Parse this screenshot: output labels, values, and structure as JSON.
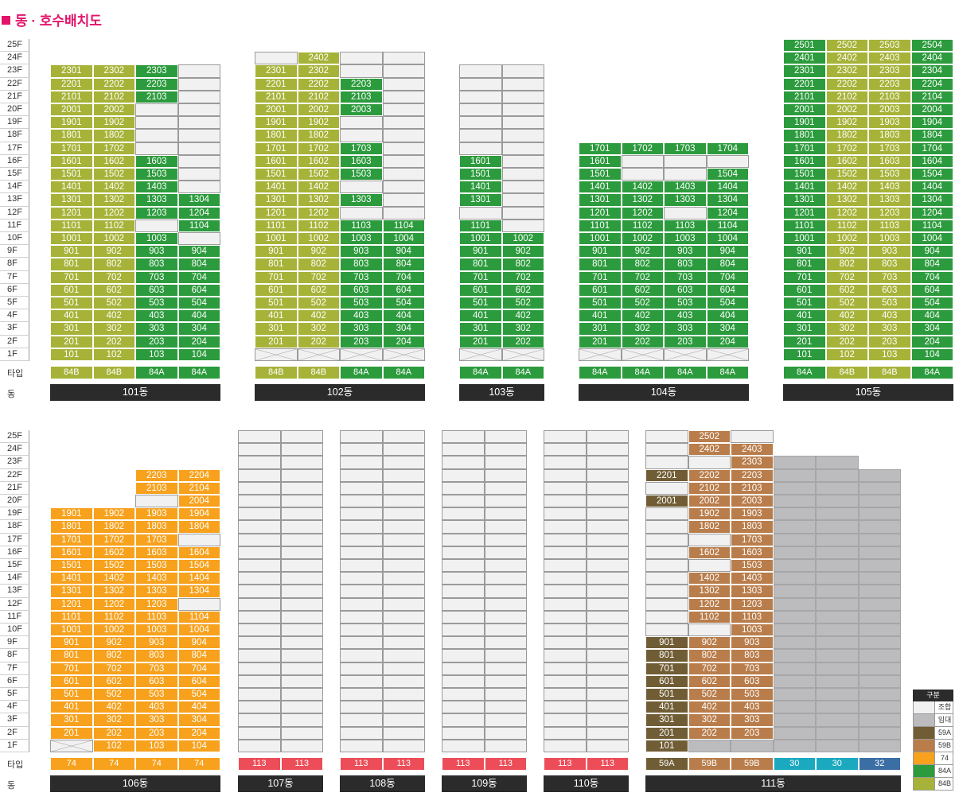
{
  "title": "동 · 호수배치도",
  "row_labels": {
    "type": "타입",
    "dong": "동"
  },
  "colors": {
    "84A": "#2c9b3d",
    "84B": "#a6b338",
    "74": "#f7a11c",
    "59A": "#715d35",
    "59B": "#b97d4b",
    "113": "#ec4d58",
    "30": "#1ba9bf",
    "32": "#3a6ea5",
    "임대": "#bcbcbf",
    "조합": "#f1f1f1"
  },
  "floors": [
    "25F",
    "24F",
    "23F",
    "22F",
    "21F",
    "20F",
    "19F",
    "18F",
    "17F",
    "16F",
    "15F",
    "14F",
    "13F",
    "12F",
    "11F",
    "10F",
    "9F",
    "8F",
    "7F",
    "6F",
    "5F",
    "4F",
    "3F",
    "2F",
    "1F"
  ],
  "legend": {
    "title": "구분",
    "items": [
      {
        "key": "조합",
        "label": "조합"
      },
      {
        "key": "임대",
        "label": "임대"
      },
      {
        "key": "59A",
        "label": "59A"
      },
      {
        "key": "59B",
        "label": "59B"
      },
      {
        "key": "74",
        "label": "74"
      },
      {
        "key": "84A",
        "label": "84A"
      },
      {
        "key": "84B",
        "label": "84B"
      }
    ]
  },
  "buildings": [
    {
      "name": "101동",
      "types": [
        "84B",
        "84B",
        "84A",
        "84A"
      ],
      "type_colors": [
        "84B",
        "84B",
        "84A",
        "84A"
      ],
      "top_floor": 23,
      "rows": {
        "23": [
          "2301",
          "2302",
          "2303",
          "-"
        ],
        "22": [
          "2201",
          "2202",
          "2203",
          "-"
        ],
        "21": [
          "2101",
          "2102",
          "2103",
          "-"
        ],
        "20": [
          "2001",
          "2002",
          "-",
          "-"
        ],
        "19": [
          "1901",
          "1902",
          "-",
          "-"
        ],
        "18": [
          "1801",
          "1802",
          "-",
          "-"
        ],
        "17": [
          "1701",
          "1702",
          "-",
          "-"
        ],
        "16": [
          "1601",
          "1602",
          "1603",
          "-"
        ],
        "15": [
          "1501",
          "1502",
          "1503",
          "-"
        ],
        "14": [
          "1401",
          "1402",
          "1403",
          "-"
        ],
        "13": [
          "1301",
          "1302",
          "1303",
          "1304"
        ],
        "12": [
          "1201",
          "1202",
          "1203",
          "1204"
        ],
        "11": [
          "1101",
          "1102",
          "-",
          "1104"
        ],
        "10": [
          "1001",
          "1002",
          "1003",
          "-"
        ],
        "9": [
          "901",
          "902",
          "903",
          "904"
        ],
        "8": [
          "801",
          "802",
          "803",
          "804"
        ],
        "7": [
          "701",
          "702",
          "703",
          "704"
        ],
        "6": [
          "601",
          "602",
          "603",
          "604"
        ],
        "5": [
          "501",
          "502",
          "503",
          "504"
        ],
        "4": [
          "401",
          "402",
          "403",
          "404"
        ],
        "3": [
          "301",
          "302",
          "303",
          "304"
        ],
        "2": [
          "201",
          "202",
          "203",
          "204"
        ],
        "1": [
          "101",
          "102",
          "103",
          "104"
        ]
      }
    },
    {
      "name": "102동",
      "types": [
        "84B",
        "84B",
        "84A",
        "84A"
      ],
      "type_colors": [
        "84B",
        "84B",
        "84A",
        "84A"
      ],
      "top_floor": 24,
      "rows": {
        "24": [
          "-",
          "2402",
          "-",
          "-"
        ],
        "23": [
          "2301",
          "2302",
          "-",
          "-"
        ],
        "22": [
          "2201",
          "2202",
          "2203",
          "-"
        ],
        "21": [
          "2101",
          "2102",
          "2103",
          "-"
        ],
        "20": [
          "2001",
          "2002",
          "2003",
          "-"
        ],
        "19": [
          "1901",
          "1902",
          "-",
          "-"
        ],
        "18": [
          "1801",
          "1802",
          "-",
          "-"
        ],
        "17": [
          "1701",
          "1702",
          "1703",
          "-"
        ],
        "16": [
          "1601",
          "1602",
          "1603",
          "-"
        ],
        "15": [
          "1501",
          "1502",
          "1503",
          "-"
        ],
        "14": [
          "1401",
          "1402",
          "-",
          "-"
        ],
        "13": [
          "1301",
          "1302",
          "1303",
          "-"
        ],
        "12": [
          "1201",
          "1202",
          "-",
          "-"
        ],
        "11": [
          "1101",
          "1102",
          "1103",
          "1104"
        ],
        "10": [
          "1001",
          "1002",
          "1003",
          "1004"
        ],
        "9": [
          "901",
          "902",
          "903",
          "904"
        ],
        "8": [
          "801",
          "802",
          "803",
          "804"
        ],
        "7": [
          "701",
          "702",
          "703",
          "704"
        ],
        "6": [
          "601",
          "602",
          "603",
          "604"
        ],
        "5": [
          "501",
          "502",
          "503",
          "504"
        ],
        "4": [
          "401",
          "402",
          "403",
          "404"
        ],
        "3": [
          "301",
          "302",
          "303",
          "304"
        ],
        "2": [
          "201",
          "202",
          "203",
          "204"
        ],
        "1": [
          "x",
          "x",
          "x",
          "x"
        ]
      }
    },
    {
      "name": "103동",
      "types": [
        "84A",
        "84A"
      ],
      "type_colors": [
        "84A",
        "84A"
      ],
      "top_floor": 23,
      "rows": {
        "23": [
          "-",
          "-"
        ],
        "22": [
          "-",
          "-"
        ],
        "21": [
          "-",
          "-"
        ],
        "20": [
          "-",
          "-"
        ],
        "19": [
          "-",
          "-"
        ],
        "18": [
          "-",
          "-"
        ],
        "17": [
          "-",
          "-"
        ],
        "16": [
          "1601",
          "-"
        ],
        "15": [
          "1501",
          "-"
        ],
        "14": [
          "1401",
          "-"
        ],
        "13": [
          "1301",
          "-"
        ],
        "12": [
          "-",
          "-"
        ],
        "11": [
          "1101",
          "-"
        ],
        "10": [
          "1001",
          "1002"
        ],
        "9": [
          "901",
          "902"
        ],
        "8": [
          "801",
          "802"
        ],
        "7": [
          "701",
          "702"
        ],
        "6": [
          "601",
          "602"
        ],
        "5": [
          "501",
          "502"
        ],
        "4": [
          "401",
          "402"
        ],
        "3": [
          "301",
          "302"
        ],
        "2": [
          "201",
          "202"
        ],
        "1": [
          "x",
          "x"
        ]
      }
    },
    {
      "name": "104동",
      "types": [
        "84A",
        "84A",
        "84A",
        "84A"
      ],
      "type_colors": [
        "84A",
        "84A",
        "84A",
        "84A"
      ],
      "top_floor": 17,
      "rows": {
        "17": [
          "1701",
          "1702",
          "1703",
          "1704"
        ],
        "16": [
          "1601",
          "-",
          "-",
          "-"
        ],
        "15": [
          "1501",
          "-",
          "-",
          "1504"
        ],
        "14": [
          "1401",
          "1402",
          "1403",
          "1404"
        ],
        "13": [
          "1301",
          "1302",
          "1303",
          "1304"
        ],
        "12": [
          "1201",
          "1202",
          "-",
          "1204"
        ],
        "11": [
          "1101",
          "1102",
          "1103",
          "1104"
        ],
        "10": [
          "1001",
          "1002",
          "1003",
          "1004"
        ],
        "9": [
          "901",
          "902",
          "903",
          "904"
        ],
        "8": [
          "801",
          "802",
          "803",
          "804"
        ],
        "7": [
          "701",
          "702",
          "703",
          "704"
        ],
        "6": [
          "601",
          "602",
          "603",
          "604"
        ],
        "5": [
          "501",
          "502",
          "503",
          "504"
        ],
        "4": [
          "401",
          "402",
          "403",
          "404"
        ],
        "3": [
          "301",
          "302",
          "303",
          "304"
        ],
        "2": [
          "201",
          "202",
          "203",
          "204"
        ],
        "1": [
          "x",
          "x",
          "x",
          "x"
        ]
      }
    },
    {
      "name": "105동",
      "types": [
        "84A",
        "84B",
        "84B",
        "84A"
      ],
      "type_colors": [
        "84A",
        "84B",
        "84B",
        "84A"
      ],
      "top_floor": 25,
      "rows": {
        "25": [
          "2501",
          "2502",
          "2503",
          "2504"
        ],
        "24": [
          "2401",
          "2402",
          "2403",
          "2404"
        ],
        "23": [
          "2301",
          "2302",
          "2303",
          "2304"
        ],
        "22": [
          "2201",
          "2202",
          "2203",
          "2204"
        ],
        "21": [
          "2101",
          "2102",
          "2103",
          "2104"
        ],
        "20": [
          "2001",
          "2002",
          "2003",
          "2004"
        ],
        "19": [
          "1901",
          "1902",
          "1903",
          "1904"
        ],
        "18": [
          "1801",
          "1802",
          "1803",
          "1804"
        ],
        "17": [
          "1701",
          "1702",
          "1703",
          "1704"
        ],
        "16": [
          "1601",
          "1602",
          "1603",
          "1604"
        ],
        "15": [
          "1501",
          "1502",
          "1503",
          "1504"
        ],
        "14": [
          "1401",
          "1402",
          "1403",
          "1404"
        ],
        "13": [
          "1301",
          "1302",
          "1303",
          "1304"
        ],
        "12": [
          "1201",
          "1202",
          "1203",
          "1204"
        ],
        "11": [
          "1101",
          "1102",
          "1103",
          "1104"
        ],
        "10": [
          "1001",
          "1002",
          "1003",
          "1004"
        ],
        "9": [
          "901",
          "902",
          "903",
          "904"
        ],
        "8": [
          "801",
          "802",
          "803",
          "804"
        ],
        "7": [
          "701",
          "702",
          "703",
          "704"
        ],
        "6": [
          "601",
          "602",
          "603",
          "604"
        ],
        "5": [
          "501",
          "502",
          "503",
          "504"
        ],
        "4": [
          "401",
          "402",
          "403",
          "404"
        ],
        "3": [
          "301",
          "302",
          "303",
          "304"
        ],
        "2": [
          "201",
          "202",
          "203",
          "204"
        ],
        "1": [
          "101",
          "102",
          "103",
          "104"
        ]
      }
    },
    {
      "name": "106동",
      "types": [
        "74",
        "74",
        "74",
        "74"
      ],
      "type_colors": [
        "74",
        "74",
        "74",
        "74"
      ],
      "top_floor": 22,
      "rows": {
        "22": [
          "",
          "",
          "2203",
          "2204"
        ],
        "21": [
          "",
          "",
          "2103",
          "2104"
        ],
        "20": [
          "",
          "",
          "-",
          "2004"
        ],
        "19": [
          "1901",
          "1902",
          "1903",
          "1904"
        ],
        "18": [
          "1801",
          "1802",
          "1803",
          "1804"
        ],
        "17": [
          "1701",
          "1702",
          "1703",
          "-"
        ],
        "16": [
          "1601",
          "1602",
          "1603",
          "1604"
        ],
        "15": [
          "1501",
          "1502",
          "1503",
          "1504"
        ],
        "14": [
          "1401",
          "1402",
          "1403",
          "1404"
        ],
        "13": [
          "1301",
          "1302",
          "1303",
          "1304"
        ],
        "12": [
          "1201",
          "1202",
          "1203",
          "-"
        ],
        "11": [
          "1101",
          "1102",
          "1103",
          "1104"
        ],
        "10": [
          "1001",
          "1002",
          "1003",
          "1004"
        ],
        "9": [
          "901",
          "902",
          "903",
          "904"
        ],
        "8": [
          "801",
          "802",
          "803",
          "804"
        ],
        "7": [
          "701",
          "702",
          "703",
          "704"
        ],
        "6": [
          "601",
          "602",
          "603",
          "604"
        ],
        "5": [
          "501",
          "502",
          "503",
          "504"
        ],
        "4": [
          "401",
          "402",
          "403",
          "404"
        ],
        "3": [
          "301",
          "302",
          "303",
          "304"
        ],
        "2": [
          "201",
          "202",
          "203",
          "204"
        ],
        "1": [
          "x",
          "102",
          "103",
          "104"
        ]
      }
    },
    {
      "name": "107동",
      "types": [
        "113",
        "113"
      ],
      "type_colors": [
        "113",
        "113"
      ],
      "top_floor": 25,
      "all_empty": true,
      "cols": 2
    },
    {
      "name": "108동",
      "types": [
        "113",
        "113"
      ],
      "type_colors": [
        "113",
        "113"
      ],
      "top_floor": 25,
      "all_empty": true,
      "cols": 2
    },
    {
      "name": "109동",
      "types": [
        "113",
        "113"
      ],
      "type_colors": [
        "113",
        "113"
      ],
      "top_floor": 25,
      "all_empty": true,
      "cols": 2
    },
    {
      "name": "110동",
      "types": [
        "113",
        "113"
      ],
      "type_colors": [
        "113",
        "113"
      ],
      "top_floor": 25,
      "all_empty": true,
      "cols": 2
    },
    {
      "name": "111동",
      "types": [
        "59A",
        "59B",
        "59B",
        "30",
        "30",
        "32"
      ],
      "type_colors": [
        "59A",
        "59B",
        "59B",
        "30",
        "30",
        "32"
      ],
      "top_floor": 25,
      "rows": {
        "25": [
          "-",
          "2502",
          "-",
          "",
          "",
          ""
        ],
        "24": [
          "-",
          "2402",
          "2403",
          "",
          "",
          ""
        ],
        "23": [
          "-",
          "-",
          "2303",
          "R",
          "R",
          ""
        ],
        "22": [
          "2201",
          "2202",
          "2203",
          "R",
          "R",
          "R"
        ],
        "21": [
          "-",
          "2102",
          "2103",
          "R",
          "R",
          "R"
        ],
        "20": [
          "2001",
          "2002",
          "2003",
          "R",
          "R",
          "R"
        ],
        "19": [
          "-",
          "1902",
          "1903",
          "R",
          "R",
          "R"
        ],
        "18": [
          "-",
          "1802",
          "1803",
          "R",
          "R",
          "R"
        ],
        "17": [
          "-",
          "-",
          "1703",
          "R",
          "R",
          "R"
        ],
        "16": [
          "-",
          "1602",
          "1603",
          "R",
          "R",
          "R"
        ],
        "15": [
          "-",
          "-",
          "1503",
          "R",
          "R",
          "R"
        ],
        "14": [
          "-",
          "1402",
          "1403",
          "R",
          "R",
          "R"
        ],
        "13": [
          "-",
          "1302",
          "1303",
          "R",
          "R",
          "R"
        ],
        "12": [
          "-",
          "1202",
          "1203",
          "R",
          "R",
          "R"
        ],
        "11": [
          "-",
          "1102",
          "1103",
          "R",
          "R",
          "R"
        ],
        "10": [
          "-",
          "-",
          "1003",
          "R",
          "R",
          "R"
        ],
        "9": [
          "901",
          "902",
          "903",
          "R",
          "R",
          "R"
        ],
        "8": [
          "801",
          "802",
          "803",
          "R",
          "R",
          "R"
        ],
        "7": [
          "701",
          "702",
          "703",
          "R",
          "R",
          "R"
        ],
        "6": [
          "601",
          "602",
          "603",
          "R",
          "R",
          "R"
        ],
        "5": [
          "501",
          "502",
          "503",
          "R",
          "R",
          "R"
        ],
        "4": [
          "401",
          "402",
          "403",
          "R",
          "R",
          "R"
        ],
        "3": [
          "301",
          "302",
          "303",
          "R",
          "R",
          "R"
        ],
        "2": [
          "201",
          "202",
          "203",
          "R",
          "R",
          "R"
        ],
        "1": [
          "101",
          "R",
          "R",
          "R",
          "R",
          "R"
        ]
      }
    }
  ]
}
